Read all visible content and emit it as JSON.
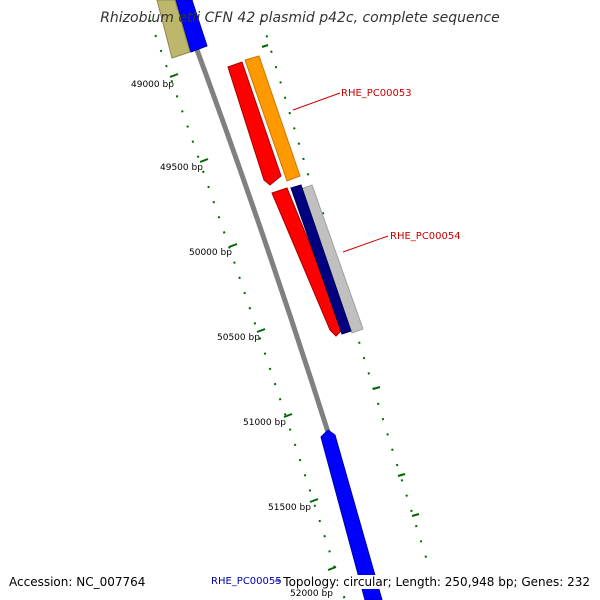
{
  "title": "Rhizobium etli CFN 42 plasmid p42c, complete sequence",
  "footer": {
    "accession": "Accession: NC_007764",
    "summary": "Topology: circular; Length: 250,948 bp; Genes: 232"
  },
  "ticks": [
    {
      "label": "49000 bp"
    },
    {
      "label": "49500 bp"
    },
    {
      "label": "50000 bp"
    },
    {
      "label": "50500 bp"
    },
    {
      "label": "51000 bp"
    },
    {
      "label": "51500 bp"
    },
    {
      "label": "52000 bp"
    }
  ],
  "genes": [
    {
      "label": "RHE_PC00053"
    },
    {
      "label": "RHE_PC00054"
    },
    {
      "label": "RHE_PC00055"
    }
  ],
  "colors": {
    "backbone": "#808080",
    "cds_red": "#ff0000",
    "gene_orange": "#ff9900",
    "gene_navy": "#000080",
    "gene_blue": "#0000ff",
    "gene_khaki": "#bdb76b",
    "gene_gray": "#c0c0c0",
    "tick_green": "#006600",
    "label_red": "#cc0000"
  }
}
